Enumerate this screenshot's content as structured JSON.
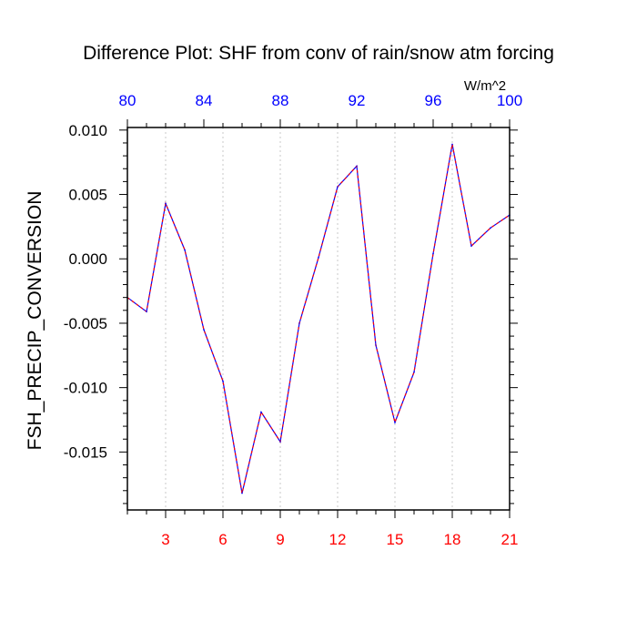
{
  "chart_data": {
    "type": "line",
    "title": "Difference Plot: SHF from conv of rain/snow atm forcing",
    "ylabel": "FSH_PRECIP_CONVERSION",
    "top_axis_units": "W/m^2",
    "xlim": [
      1,
      21
    ],
    "ylim": [
      -0.0195,
      0.0102
    ],
    "bottom_ticks": [
      3,
      6,
      9,
      12,
      15,
      18,
      21
    ],
    "bottom_tick_labels": [
      "3",
      "6",
      "9",
      "12",
      "15",
      "18",
      "21"
    ],
    "top_ticks": [
      80,
      84,
      88,
      92,
      96,
      100
    ],
    "top_tick_labels": [
      "80",
      "84",
      "88",
      "92",
      "96",
      "100"
    ],
    "top_range": [
      80,
      100
    ],
    "y_ticks": [
      0.01,
      0.005,
      0.0,
      -0.005,
      -0.01,
      -0.015
    ],
    "y_tick_labels": [
      "0.010",
      "0.005",
      "0.000",
      "-0.005",
      "-0.010",
      "-0.015"
    ],
    "grid": "vertical dotted at bottom ticks",
    "colors": {
      "bottom_tick_labels": "#ff0000",
      "top_tick_labels": "#0000ff",
      "line_primary": "#0000ff",
      "line_dash": "#ff0000",
      "axis": "#000000",
      "grid": "#c8c8c8"
    },
    "series": [
      {
        "x": [
          1,
          2,
          3,
          4,
          5,
          6,
          7,
          8,
          9,
          10,
          11,
          12,
          13,
          14,
          15,
          16,
          17,
          18,
          19,
          20,
          21
        ],
        "y": [
          -0.003,
          -0.0041,
          0.0043,
          0.0007,
          -0.0055,
          -0.0095,
          -0.0182,
          -0.0119,
          -0.0142,
          -0.005,
          0.0001,
          0.0056,
          0.0072,
          -0.0067,
          -0.0127,
          -0.0088,
          0.0004,
          0.0089,
          0.001,
          0.0024,
          0.0034
        ]
      }
    ]
  }
}
